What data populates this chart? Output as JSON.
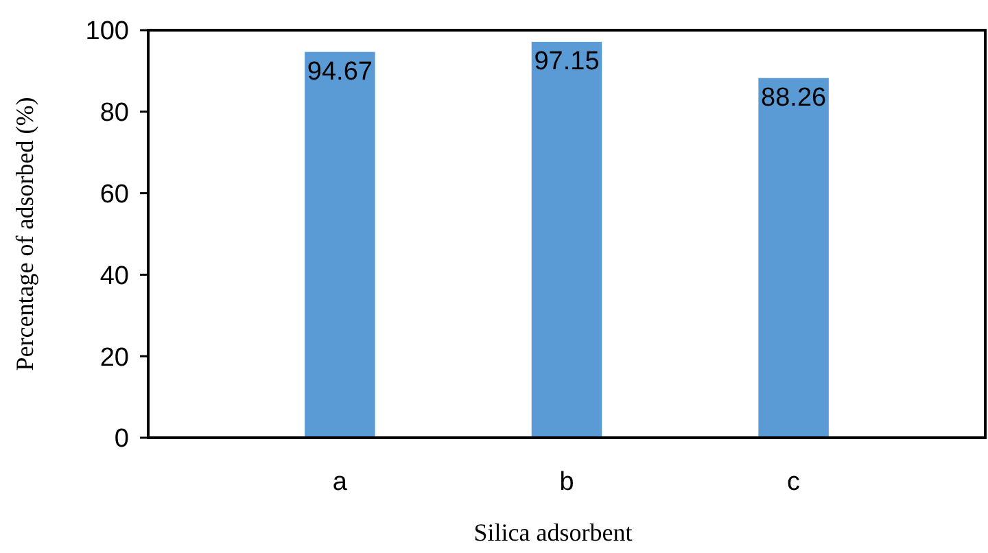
{
  "chart_data": {
    "type": "bar",
    "xlabel": "Silica adsorbent",
    "ylabel": "Percentage of adsorbed (%)",
    "categories": [
      "a",
      "b",
      "c"
    ],
    "values": [
      94.67,
      97.15,
      88.26
    ],
    "color": "#5b9bd5",
    "ylim": [
      0,
      100
    ],
    "yticks": [
      0,
      20,
      40,
      60,
      80,
      100
    ],
    "grid": false,
    "data_labels": true
  }
}
